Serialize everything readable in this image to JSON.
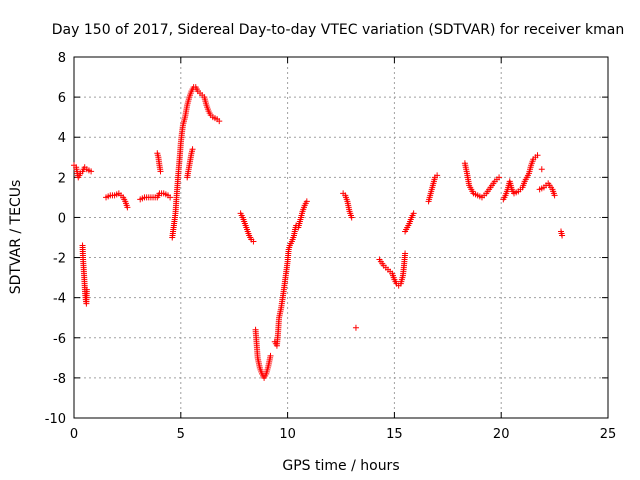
{
  "chart_data": {
    "type": "scatter",
    "title": "Day 150 of 2017, Sidereal Day-to-day VTEC variation (SDTVAR) for receiver kman",
    "xlabel": "GPS time / hours",
    "ylabel": "SDTVAR / TECUs",
    "xlim": [
      0,
      25
    ],
    "ylim": [
      -10,
      8
    ],
    "x_ticks": [
      0,
      5,
      10,
      15,
      20,
      25
    ],
    "y_ticks": [
      -10,
      -8,
      -6,
      -4,
      -2,
      0,
      2,
      4,
      6,
      8
    ],
    "grid": true,
    "marker": "plus",
    "color": "#ff0000",
    "segments": [
      [
        [
          0.0,
          2.6
        ],
        [
          0.1,
          2.5
        ],
        [
          0.2,
          2.0
        ],
        [
          0.3,
          2.2
        ],
        [
          0.4,
          2.3
        ],
        [
          0.5,
          2.5
        ],
        [
          0.6,
          2.4
        ],
        [
          0.8,
          2.3
        ]
      ],
      [
        [
          0.4,
          -1.4
        ],
        [
          0.42,
          -2.0
        ],
        [
          0.45,
          -2.5
        ],
        [
          0.48,
          -3.0
        ],
        [
          0.5,
          -3.4
        ],
        [
          0.52,
          -3.8
        ],
        [
          0.55,
          -4.1
        ],
        [
          0.58,
          -4.3
        ],
        [
          0.6,
          -3.6
        ]
      ],
      [
        [
          1.5,
          1.0
        ],
        [
          1.7,
          1.1
        ],
        [
          1.9,
          1.1
        ],
        [
          2.1,
          1.2
        ],
        [
          2.2,
          1.1
        ],
        [
          2.3,
          1.0
        ],
        [
          2.4,
          0.8
        ],
        [
          2.5,
          0.5
        ]
      ],
      [
        [
          3.1,
          0.9
        ],
        [
          3.3,
          1.0
        ],
        [
          3.5,
          1.0
        ],
        [
          3.7,
          1.0
        ],
        [
          3.9,
          1.0
        ],
        [
          4.0,
          1.2
        ],
        [
          4.2,
          1.2
        ],
        [
          4.4,
          1.1
        ],
        [
          4.5,
          1.0
        ]
      ],
      [
        [
          3.9,
          3.2
        ],
        [
          3.95,
          3.0
        ],
        [
          4.0,
          2.6
        ],
        [
          4.05,
          2.3
        ]
      ],
      [
        [
          4.6,
          -1.0
        ],
        [
          4.7,
          -0.2
        ],
        [
          4.75,
          0.2
        ],
        [
          4.8,
          1.0
        ],
        [
          4.85,
          1.7
        ],
        [
          4.9,
          2.4
        ],
        [
          4.95,
          3.0
        ],
        [
          5.0,
          3.7
        ],
        [
          5.05,
          4.2
        ],
        [
          5.1,
          4.6
        ],
        [
          5.2,
          5.0
        ],
        [
          5.3,
          5.6
        ],
        [
          5.4,
          6.0
        ],
        [
          5.5,
          6.3
        ],
        [
          5.6,
          6.5
        ],
        [
          5.7,
          6.5
        ],
        [
          5.8,
          6.3
        ],
        [
          5.9,
          6.2
        ],
        [
          6.0,
          6.1
        ],
        [
          6.1,
          6.0
        ],
        [
          6.2,
          5.6
        ],
        [
          6.3,
          5.3
        ],
        [
          6.4,
          5.1
        ],
        [
          6.5,
          5.0
        ],
        [
          6.7,
          4.9
        ],
        [
          6.8,
          4.8
        ]
      ],
      [
        [
          5.3,
          2.0
        ],
        [
          5.35,
          2.3
        ],
        [
          5.4,
          2.6
        ],
        [
          5.45,
          2.9
        ],
        [
          5.5,
          3.2
        ],
        [
          5.55,
          3.4
        ]
      ],
      [
        [
          7.8,
          0.2
        ],
        [
          7.9,
          0.0
        ],
        [
          8.0,
          -0.3
        ],
        [
          8.1,
          -0.6
        ],
        [
          8.2,
          -0.9
        ],
        [
          8.3,
          -1.1
        ],
        [
          8.4,
          -1.2
        ]
      ],
      [
        [
          8.5,
          -5.6
        ],
        [
          8.55,
          -6.3
        ],
        [
          8.6,
          -7.0
        ],
        [
          8.7,
          -7.5
        ],
        [
          8.8,
          -7.8
        ],
        [
          8.9,
          -8.0
        ],
        [
          9.0,
          -7.8
        ],
        [
          9.1,
          -7.4
        ],
        [
          9.2,
          -6.9
        ]
      ],
      [
        [
          9.4,
          -6.2
        ],
        [
          9.5,
          -6.4
        ],
        [
          9.55,
          -5.8
        ],
        [
          9.6,
          -5.0
        ],
        [
          9.7,
          -4.5
        ],
        [
          9.8,
          -3.8
        ],
        [
          9.9,
          -3.0
        ],
        [
          10.0,
          -2.2
        ],
        [
          10.05,
          -1.6
        ],
        [
          10.1,
          -1.4
        ],
        [
          10.2,
          -1.2
        ],
        [
          10.3,
          -0.9
        ],
        [
          10.35,
          -0.6
        ],
        [
          10.4,
          -0.4
        ]
      ],
      [
        [
          10.5,
          -0.5
        ],
        [
          10.6,
          -0.1
        ],
        [
          10.7,
          0.3
        ],
        [
          10.8,
          0.6
        ],
        [
          10.9,
          0.8
        ]
      ],
      [
        [
          12.6,
          1.2
        ],
        [
          12.7,
          1.1
        ],
        [
          12.8,
          0.8
        ],
        [
          12.9,
          0.3
        ],
        [
          13.0,
          0.0
        ]
      ],
      [
        [
          13.2,
          -5.5
        ]
      ],
      [
        [
          14.3,
          -2.1
        ],
        [
          14.5,
          -2.4
        ],
        [
          14.7,
          -2.6
        ],
        [
          14.9,
          -2.8
        ],
        [
          15.0,
          -3.1
        ],
        [
          15.1,
          -3.3
        ],
        [
          15.2,
          -3.4
        ],
        [
          15.3,
          -3.3
        ],
        [
          15.4,
          -2.9
        ],
        [
          15.45,
          -2.4
        ],
        [
          15.5,
          -1.8
        ]
      ],
      [
        [
          15.5,
          -0.7
        ],
        [
          15.6,
          -0.5
        ],
        [
          15.7,
          -0.3
        ],
        [
          15.8,
          0.0
        ],
        [
          15.9,
          0.2
        ]
      ],
      [
        [
          16.6,
          0.8
        ],
        [
          16.7,
          1.2
        ],
        [
          16.8,
          1.6
        ],
        [
          16.9,
          2.0
        ],
        [
          17.0,
          2.1
        ]
      ],
      [
        [
          18.3,
          2.7
        ],
        [
          18.4,
          2.2
        ],
        [
          18.5,
          1.6
        ],
        [
          18.7,
          1.2
        ],
        [
          18.9,
          1.1
        ],
        [
          19.1,
          1.0
        ],
        [
          19.3,
          1.2
        ],
        [
          19.5,
          1.5
        ],
        [
          19.7,
          1.8
        ],
        [
          19.9,
          2.0
        ]
      ],
      [
        [
          20.1,
          0.9
        ],
        [
          20.2,
          1.1
        ],
        [
          20.3,
          1.4
        ],
        [
          20.4,
          1.8
        ],
        [
          20.5,
          1.4
        ],
        [
          20.6,
          1.2
        ],
        [
          20.8,
          1.3
        ],
        [
          21.0,
          1.5
        ],
        [
          21.1,
          1.8
        ],
        [
          21.3,
          2.2
        ],
        [
          21.4,
          2.6
        ],
        [
          21.5,
          2.9
        ],
        [
          21.6,
          3.0
        ],
        [
          21.7,
          3.1
        ]
      ],
      [
        [
          21.8,
          1.4
        ],
        [
          22.0,
          1.5
        ],
        [
          22.2,
          1.7
        ],
        [
          22.4,
          1.4
        ],
        [
          22.5,
          1.1
        ]
      ],
      [
        [
          21.9,
          2.4
        ]
      ],
      [
        [
          22.8,
          -0.7
        ],
        [
          22.85,
          -0.9
        ]
      ]
    ]
  }
}
